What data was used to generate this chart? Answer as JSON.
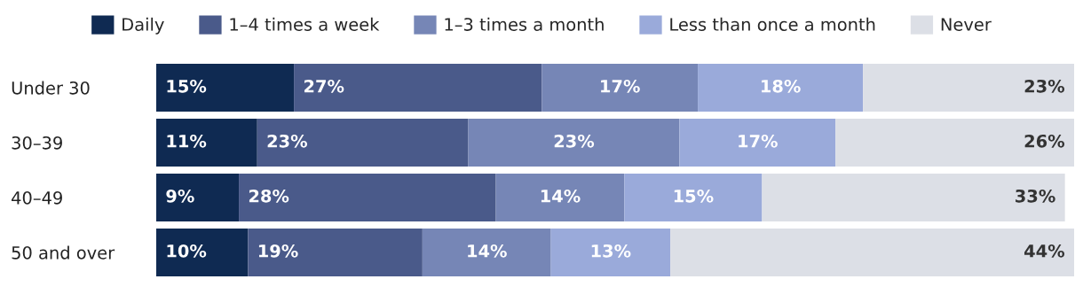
{
  "chart_data": {
    "type": "bar",
    "orientation": "horizontal",
    "stacked": true,
    "categories": [
      "Under 30",
      "30–39",
      "40–49",
      "50 and over"
    ],
    "xlim": [
      0,
      100
    ],
    "tick_labels": "y",
    "grid": false,
    "legend": "top",
    "series": [
      {
        "name": "Daily",
        "color": "#0f2a52",
        "values": [
          15,
          11,
          9,
          10
        ],
        "value_labels": [
          "15%",
          "11%",
          "9%",
          "10%"
        ]
      },
      {
        "name": "1–4 times a week",
        "color": "#4a5a8a",
        "values": [
          27,
          23,
          28,
          19
        ],
        "value_labels": [
          "27%",
          "23%",
          "28%",
          "19%"
        ]
      },
      {
        "name": "1–3 times a month",
        "color": "#7686b6",
        "values": [
          17,
          23,
          14,
          14
        ],
        "value_labels": [
          "17%",
          "23%",
          "14%",
          "14%"
        ]
      },
      {
        "name": "Less than once a month",
        "color": "#9aaada",
        "values": [
          18,
          17,
          15,
          13
        ],
        "value_labels": [
          "18%",
          "17%",
          "15%",
          "13%"
        ]
      },
      {
        "name": "Never",
        "color": "#dcdfe6",
        "values": [
          23,
          26,
          33,
          44
        ],
        "value_labels": [
          "23%",
          "26%",
          "33%",
          "44%"
        ]
      }
    ]
  }
}
